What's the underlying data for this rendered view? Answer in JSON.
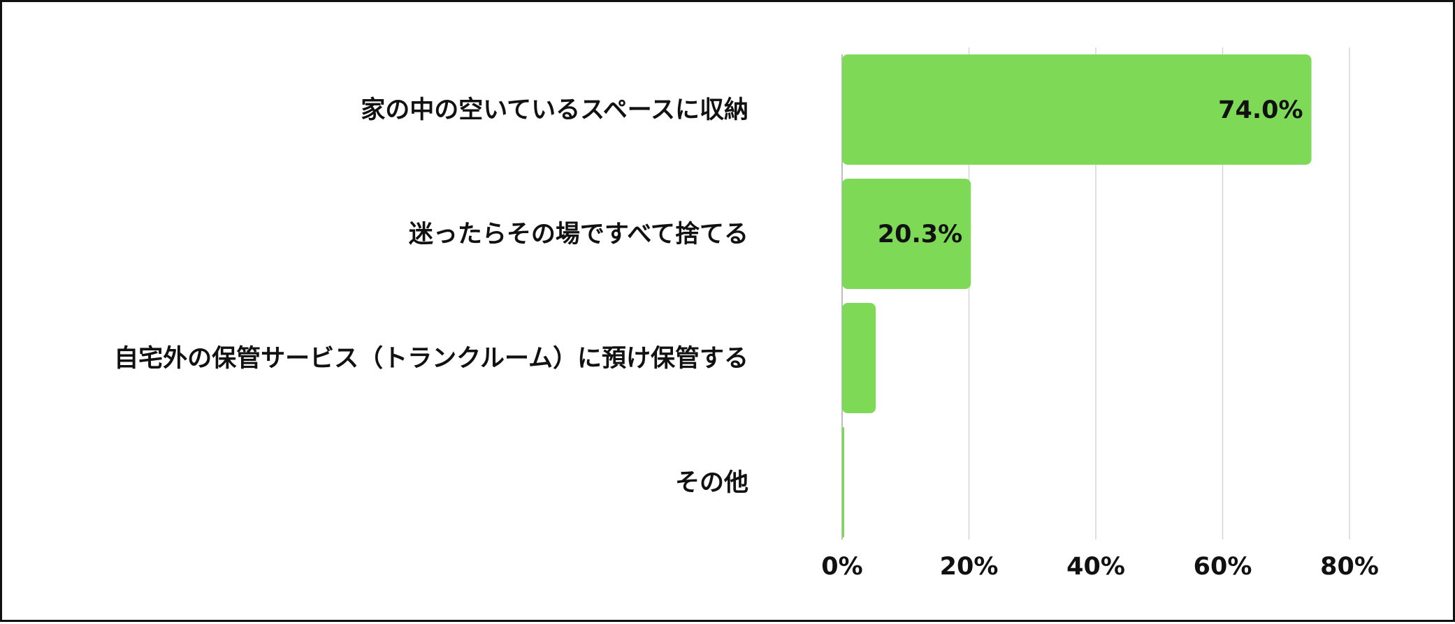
{
  "chart_data": {
    "type": "bar",
    "orientation": "horizontal",
    "categories": [
      "家の中の空いているスペースに収納",
      "迷ったらその場ですべて捨てる",
      "自宅外の保管サービス（トランクルーム）に預け保管する",
      "その他"
    ],
    "values": [
      74.0,
      20.3,
      5.3,
      0.3
    ],
    "data_labels": [
      "74.0%",
      "20.3%",
      "",
      ""
    ],
    "xlim": [
      0,
      80
    ],
    "xticks": [
      0,
      20,
      40,
      60,
      80
    ],
    "xtick_labels": [
      "0%",
      "20%",
      "40%",
      "60%",
      "80%"
    ],
    "title": "",
    "xlabel": "",
    "ylabel": "",
    "grid": "vertical",
    "legend": "none",
    "bar_color": "#7ed957",
    "grid_color": "#d6d6d6",
    "text_color": "#111111"
  }
}
